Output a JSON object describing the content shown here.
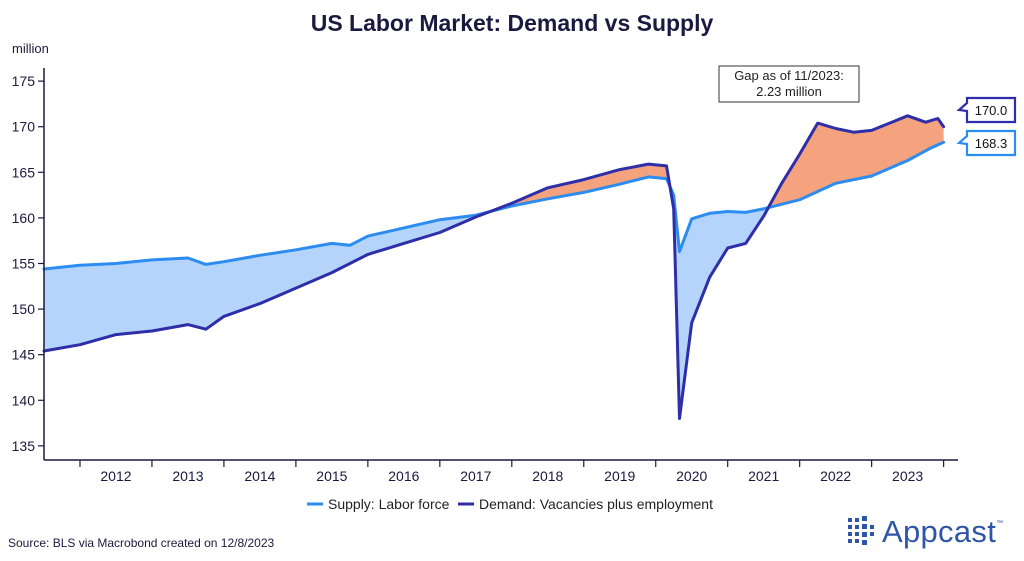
{
  "chart_data": {
    "type": "line",
    "title": "US Labor Market: Demand vs Supply",
    "ylabel": "million",
    "xlabel": "",
    "ylim": [
      134,
      176
    ],
    "xlim": [
      2011.5,
      2024.2
    ],
    "yticks": [
      135,
      140,
      145,
      150,
      155,
      160,
      165,
      170,
      175
    ],
    "xtick_labels": [
      "2012",
      "2013",
      "2014",
      "2015",
      "2016",
      "2017",
      "2018",
      "2019",
      "2020",
      "2021",
      "2022",
      "2023"
    ],
    "grid": false,
    "legend_position": "bottom-center",
    "series": [
      {
        "name": "Supply: Labor force",
        "color": "#2d8cef",
        "points": [
          [
            2011.5,
            154.4
          ],
          [
            2012.0,
            154.8
          ],
          [
            2012.5,
            155.0
          ],
          [
            2013.0,
            155.4
          ],
          [
            2013.5,
            155.6
          ],
          [
            2013.75,
            154.9
          ],
          [
            2014.0,
            155.2
          ],
          [
            2014.5,
            155.9
          ],
          [
            2015.0,
            156.5
          ],
          [
            2015.5,
            157.2
          ],
          [
            2015.75,
            157.0
          ],
          [
            2016.0,
            158.0
          ],
          [
            2016.5,
            158.9
          ],
          [
            2017.0,
            159.8
          ],
          [
            2017.5,
            160.3
          ],
          [
            2018.0,
            161.3
          ],
          [
            2018.5,
            162.1
          ],
          [
            2019.0,
            162.8
          ],
          [
            2019.5,
            163.7
          ],
          [
            2019.9,
            164.5
          ],
          [
            2020.15,
            164.3
          ],
          [
            2020.25,
            162.5
          ],
          [
            2020.33,
            156.3
          ],
          [
            2020.5,
            159.9
          ],
          [
            2020.75,
            160.5
          ],
          [
            2021.0,
            160.7
          ],
          [
            2021.25,
            160.6
          ],
          [
            2021.5,
            161.0
          ],
          [
            2022.0,
            162.0
          ],
          [
            2022.5,
            163.8
          ],
          [
            2023.0,
            164.6
          ],
          [
            2023.5,
            166.3
          ],
          [
            2023.83,
            167.7
          ],
          [
            2024.0,
            168.3
          ]
        ]
      },
      {
        "name": "Demand: Vacancies plus employment",
        "color": "#2e2ea8",
        "points": [
          [
            2011.5,
            145.4
          ],
          [
            2012.0,
            146.1
          ],
          [
            2012.5,
            147.2
          ],
          [
            2013.0,
            147.6
          ],
          [
            2013.5,
            148.3
          ],
          [
            2013.75,
            147.8
          ],
          [
            2014.0,
            149.2
          ],
          [
            2014.5,
            150.6
          ],
          [
            2015.0,
            152.3
          ],
          [
            2015.5,
            154.0
          ],
          [
            2016.0,
            156.0
          ],
          [
            2016.5,
            157.2
          ],
          [
            2017.0,
            158.4
          ],
          [
            2017.5,
            160.1
          ],
          [
            2018.0,
            161.6
          ],
          [
            2018.5,
            163.3
          ],
          [
            2019.0,
            164.2
          ],
          [
            2019.5,
            165.3
          ],
          [
            2019.9,
            165.9
          ],
          [
            2020.15,
            165.7
          ],
          [
            2020.25,
            161.0
          ],
          [
            2020.33,
            138.0
          ],
          [
            2020.5,
            148.5
          ],
          [
            2020.75,
            153.5
          ],
          [
            2021.0,
            156.7
          ],
          [
            2021.25,
            157.2
          ],
          [
            2021.5,
            160.2
          ],
          [
            2021.75,
            163.8
          ],
          [
            2022.0,
            167.0
          ],
          [
            2022.25,
            170.4
          ],
          [
            2022.5,
            169.8
          ],
          [
            2022.75,
            169.4
          ],
          [
            2023.0,
            169.6
          ],
          [
            2023.25,
            170.4
          ],
          [
            2023.5,
            171.2
          ],
          [
            2023.75,
            170.5
          ],
          [
            2023.92,
            170.9
          ],
          [
            2024.0,
            170.0
          ]
        ]
      }
    ],
    "annotation": "Gap as of 11/2023:\n2.23 million",
    "annotation_lines": [
      "Gap as of 11/2023:",
      "2.23 million"
    ],
    "end_labels": [
      {
        "series": "Demand: Vacancies plus employment",
        "value": "170.0"
      },
      {
        "series": "Supply: Labor force",
        "value": "168.3"
      }
    ],
    "fill_colors": {
      "supply_above": "#b4d4fb",
      "demand_above": "#f5a37e"
    }
  },
  "source": "Source: BLS via Macrobond created on 12/8/2023",
  "brand": {
    "name": "Appcast",
    "tm": "™",
    "icon": "dot-grid-logo-icon"
  },
  "colors": {
    "axis": "#1a1a40",
    "label_box_border": "#2e2ea8"
  }
}
